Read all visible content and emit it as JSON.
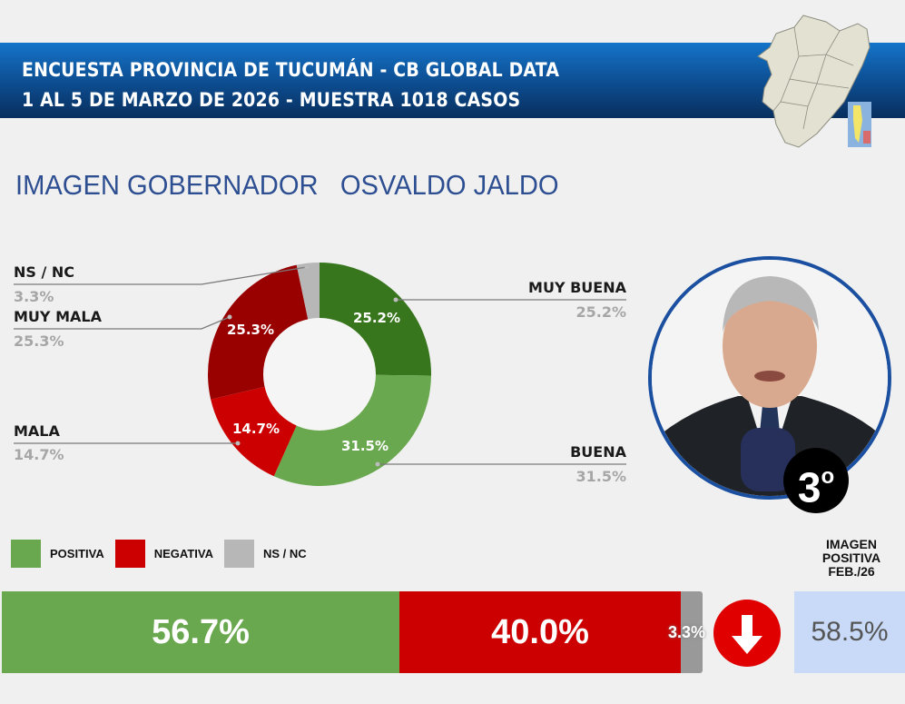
{
  "header": {
    "line1": "ENCUESTA PROVINCIA DE TUCUMÁN - CB GLOBAL DATA",
    "line2": "1 AL 5 DE MARZO DE 2026 - MUESTRA 1018 CASOS"
  },
  "title": "IMAGEN GOBERNADOR   OSVALDO JALDO",
  "rank": {
    "number": "3",
    "suffix": "o"
  },
  "donut_labels": {
    "ns_nc": {
      "label": "NS / NC",
      "value": "3.3%"
    },
    "muy_mala": {
      "label": "MUY MALA",
      "value": "25.3%"
    },
    "mala": {
      "label": "MALA",
      "value": "14.7%"
    },
    "muy_buena": {
      "label": "MUY BUENA",
      "value": "25.2%"
    },
    "buena": {
      "label": "BUENA",
      "value": "31.5%"
    }
  },
  "legend": {
    "positiva": "POSITIVA",
    "negativa": "NEGATIVA",
    "ns_nc": "NS / NC"
  },
  "summary_bar": {
    "positiva": "56.7%",
    "negativa": "40.0%",
    "ns_nc": "3.3%"
  },
  "previous": {
    "heading_line1": "IMAGEN",
    "heading_line2": "POSITIVA",
    "heading_line3": "FEB./26",
    "value": "58.5%",
    "trend": "down"
  },
  "colors": {
    "muy_buena": "#38761d",
    "buena": "#6aa84f",
    "mala": "#cc0000",
    "muy_mala": "#990000",
    "ns_nc": "#b7b7b7",
    "banner": "#0d4f94",
    "title": "#2d4f92",
    "prev_box": "#c9daf8"
  },
  "chart_data": [
    {
      "type": "pie",
      "title": "IMAGEN GOBERNADOR OSVALDO JALDO",
      "donut": true,
      "categories": [
        "MUY BUENA",
        "BUENA",
        "MALA",
        "MUY MALA",
        "NS / NC"
      ],
      "values": [
        25.2,
        31.5,
        14.7,
        25.3,
        3.3
      ],
      "colors": [
        "#38761d",
        "#6aa84f",
        "#cc0000",
        "#990000",
        "#b7b7b7"
      ],
      "unit": "%"
    },
    {
      "type": "bar",
      "orientation": "horizontal-stacked",
      "categories": [
        "POSITIVA",
        "NEGATIVA",
        "NS / NC"
      ],
      "values": [
        56.7,
        40.0,
        3.3
      ],
      "colors": [
        "#6aa84f",
        "#cc0000",
        "#999999"
      ],
      "legend_position": "top-left",
      "comparison": {
        "label": "IMAGEN POSITIVA FEB./26",
        "value": 58.5,
        "trend": "down"
      }
    }
  ]
}
